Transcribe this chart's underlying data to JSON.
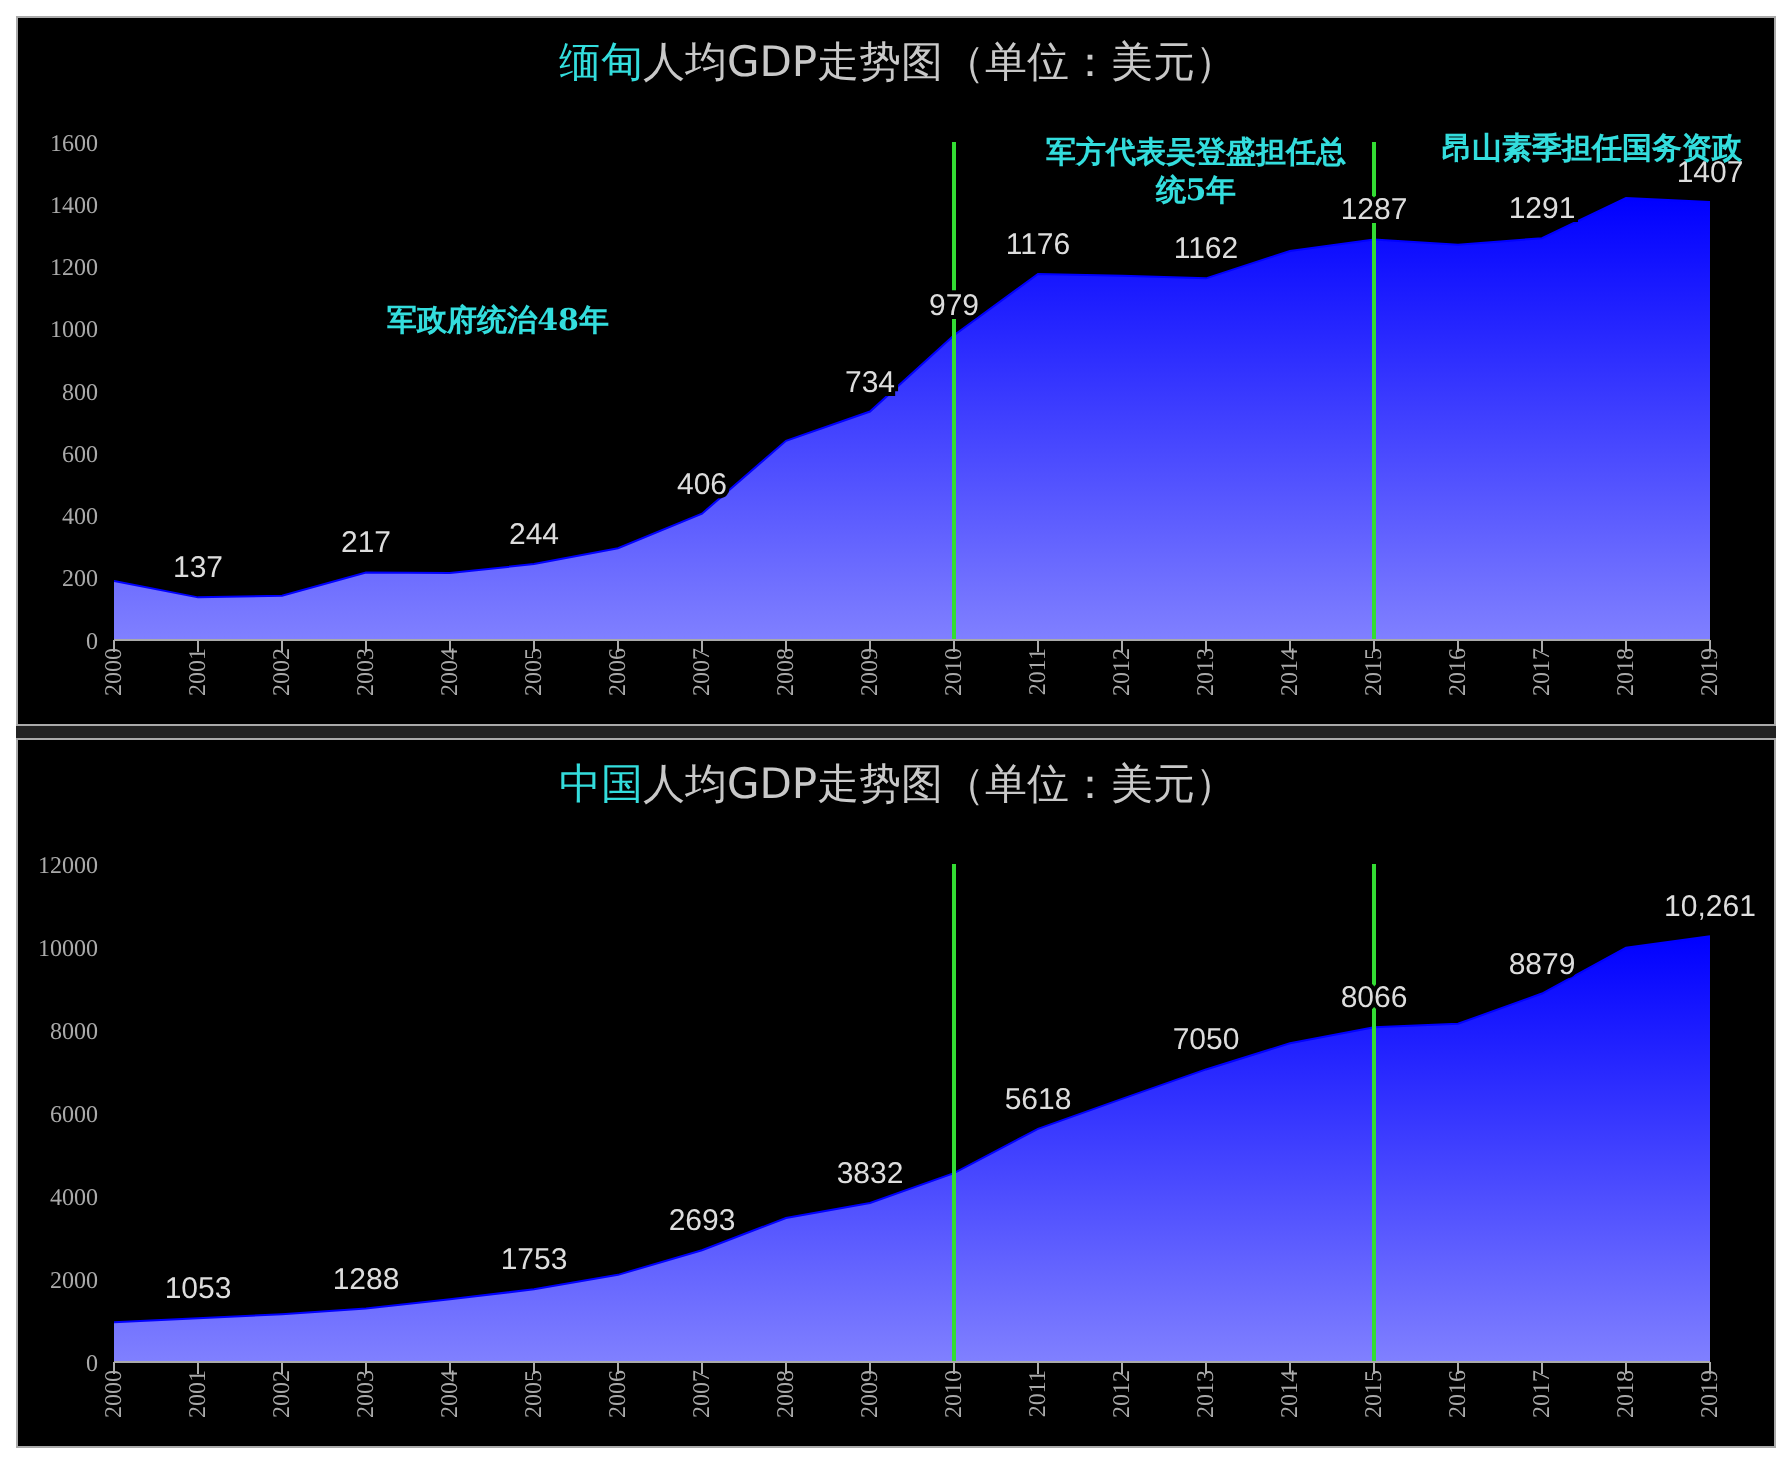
{
  "chart_data": [
    {
      "type": "area",
      "title": "缅甸人均GDP走势图（单位：美元）",
      "x": [
        2000,
        2001,
        2002,
        2003,
        2004,
        2005,
        2006,
        2007,
        2008,
        2009,
        2010,
        2011,
        2012,
        2013,
        2014,
        2015,
        2016,
        2017,
        2018,
        2019
      ],
      "series": [
        {
          "color": "#0000ff",
          "values": [
            190,
            137,
            142,
            217,
            215,
            244,
            295,
            406,
            640,
            734,
            979,
            1176,
            1170,
            1162,
            1250,
            1287,
            1270,
            1291,
            1420,
            1407
          ],
          "value_labels": [
            null,
            "137",
            null,
            "217",
            null,
            "244",
            null,
            "406",
            null,
            "734",
            "979",
            "1176",
            null,
            "1162",
            null,
            "1287",
            null,
            "1291",
            null,
            "1407"
          ]
        }
      ],
      "xlim": [
        2000,
        2019
      ],
      "xticks": [
        2000,
        2001,
        2002,
        2003,
        2004,
        2005,
        2006,
        2007,
        2008,
        2009,
        2010,
        2011,
        2012,
        2013,
        2014,
        2015,
        2016,
        2017,
        2018,
        2019
      ],
      "ylim": [
        0,
        1600
      ],
      "yticks": [
        0,
        200,
        400,
        600,
        800,
        1000,
        1200,
        1400,
        1600
      ],
      "grid": false,
      "legend": false,
      "ref_lines": [
        {
          "axis": "x",
          "value": 2010,
          "color": "#33dd33"
        },
        {
          "axis": "x",
          "value": 2015,
          "color": "#33dd33"
        }
      ],
      "annotations": [
        "军政府统治48年",
        "军方代表吴登盛担任总统5年",
        "昂山素季担任国务资政"
      ]
    },
    {
      "type": "area",
      "title": "中国人均GDP走势图（单位：美元）",
      "x": [
        2000,
        2001,
        2002,
        2003,
        2004,
        2005,
        2006,
        2007,
        2008,
        2009,
        2010,
        2011,
        2012,
        2013,
        2014,
        2015,
        2016,
        2017,
        2018,
        2019
      ],
      "series": [
        {
          "color": "#0000ff",
          "values": [
            960,
            1053,
            1150,
            1288,
            1510,
            1753,
            2100,
            2693,
            3470,
            3832,
            4550,
            5618,
            6340,
            7050,
            7680,
            8066,
            8150,
            8879,
            9980,
            10261
          ],
          "value_labels": [
            null,
            "1053",
            null,
            "1288",
            null,
            "1753",
            null,
            "2693",
            null,
            "3832",
            null,
            "5618",
            null,
            "7050",
            null,
            "8066",
            null,
            "8879",
            null,
            "10,261"
          ]
        }
      ],
      "xlim": [
        2000,
        2019
      ],
      "xticks": [
        2000,
        2001,
        2002,
        2003,
        2004,
        2005,
        2006,
        2007,
        2008,
        2009,
        2010,
        2011,
        2012,
        2013,
        2014,
        2015,
        2016,
        2017,
        2018,
        2019
      ],
      "ylim": [
        0,
        12000
      ],
      "yticks": [
        0,
        2000,
        4000,
        6000,
        8000,
        10000,
        12000
      ],
      "grid": false,
      "legend": false,
      "ref_lines": [
        {
          "axis": "x",
          "value": 2010,
          "color": "#33dd33"
        },
        {
          "axis": "x",
          "value": 2015,
          "color": "#33dd33"
        }
      ]
    }
  ]
}
